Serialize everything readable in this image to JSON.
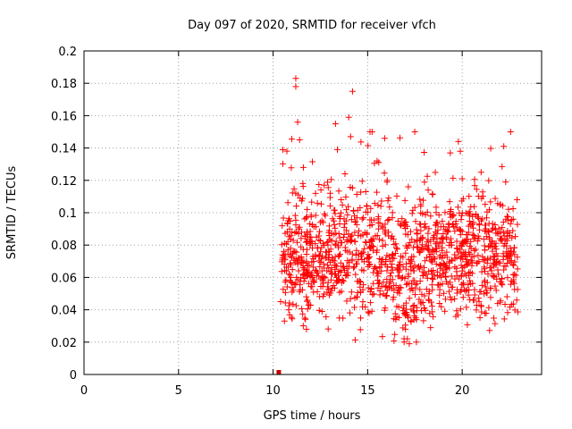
{
  "chart_data": {
    "type": "scatter",
    "title": "Day 097 of 2020, SRMTID for receiver vfch",
    "xlabel": "GPS time / hours",
    "ylabel": "SRMTID / TECUs",
    "xlim": [
      0,
      24.2
    ],
    "ylim": [
      0,
      0.2
    ],
    "xticks": [
      0,
      5,
      10,
      15,
      20
    ],
    "xtick_labels": [
      "0",
      "5",
      "10",
      "15",
      "20"
    ],
    "yticks": [
      0,
      0.02,
      0.04,
      0.06,
      0.08,
      0.1,
      0.12,
      0.14,
      0.16,
      0.18,
      0.2
    ],
    "ytick_labels": [
      "0",
      "0.02",
      "0.04",
      "0.06",
      "0.08",
      "0.1",
      "0.12",
      "0.14",
      "0.16",
      "0.18",
      "0.2"
    ],
    "grid": true,
    "marker": "+",
    "color": "#ff0000",
    "zero_point": {
      "x": 10.3,
      "y": 0
    },
    "series": [
      {
        "name": "SRMTID",
        "points": [
          [
            10.5,
            0.072
          ],
          [
            10.6,
            0.081
          ],
          [
            10.7,
            0.064
          ],
          [
            10.8,
            0.095
          ],
          [
            10.9,
            0.058
          ],
          [
            11.0,
            0.088
          ],
          [
            11.1,
            0.076
          ],
          [
            11.2,
            0.112
          ],
          [
            11.3,
            0.069
          ],
          [
            11.4,
            0.091
          ],
          [
            11.2,
            0.183
          ],
          [
            11.2,
            0.178
          ],
          [
            11.3,
            0.156
          ],
          [
            11.4,
            0.145
          ],
          [
            11.6,
            0.128
          ],
          [
            11.8,
            0.102
          ],
          [
            12.0,
            0.085
          ],
          [
            12.1,
            0.073
          ],
          [
            12.3,
            0.061
          ],
          [
            12.5,
            0.094
          ],
          [
            12.7,
            0.117
          ],
          [
            12.9,
            0.082
          ],
          [
            13.1,
            0.066
          ],
          [
            13.3,
            0.155
          ],
          [
            13.4,
            0.139
          ],
          [
            13.6,
            0.108
          ],
          [
            13.8,
            0.124
          ],
          [
            14.0,
            0.159
          ],
          [
            14.2,
            0.175
          ],
          [
            14.1,
            0.147
          ],
          [
            14.3,
            0.098
          ],
          [
            14.5,
            0.086
          ],
          [
            14.7,
            0.071
          ],
          [
            14.9,
            0.113
          ],
          [
            15.1,
            0.079
          ],
          [
            15.3,
            0.063
          ],
          [
            15.5,
            0.132
          ],
          [
            15.7,
            0.104
          ],
          [
            15.9,
            0.146
          ],
          [
            16.1,
            0.088
          ],
          [
            16.3,
            0.072
          ],
          [
            16.5,
            0.055
          ],
          [
            16.7,
            0.068
          ],
          [
            16.9,
            0.041
          ],
          [
            17.0,
            0.028
          ],
          [
            17.1,
            0.022
          ],
          [
            17.2,
            0.019
          ],
          [
            17.4,
            0.058
          ],
          [
            17.6,
            0.083
          ],
          [
            17.8,
            0.067
          ],
          [
            18.0,
            0.091
          ],
          [
            18.2,
            0.114
          ],
          [
            18.4,
            0.062
          ],
          [
            18.6,
            0.078
          ],
          [
            18.8,
            0.049
          ],
          [
            19.0,
            0.087
          ],
          [
            19.2,
            0.066
          ],
          [
            19.4,
            0.102
          ],
          [
            19.6,
            0.074
          ],
          [
            19.8,
            0.144
          ],
          [
            19.9,
            0.138
          ],
          [
            20.0,
            0.121
          ],
          [
            20.2,
            0.083
          ],
          [
            20.4,
            0.058
          ],
          [
            20.6,
            0.094
          ],
          [
            20.8,
            0.069
          ],
          [
            21.0,
            0.125
          ],
          [
            21.2,
            0.077
          ],
          [
            21.4,
            0.088
          ],
          [
            21.6,
            0.061
          ],
          [
            21.8,
            0.052
          ],
          [
            22.0,
            0.084
          ],
          [
            22.2,
            0.141
          ],
          [
            22.3,
            0.119
          ],
          [
            22.5,
            0.073
          ],
          [
            22.7,
            0.096
          ],
          [
            22.9,
            0.108
          ],
          [
            10.4,
            0.045
          ],
          [
            10.6,
            0.033
          ],
          [
            11.0,
            0.051
          ]
        ]
      }
    ]
  }
}
